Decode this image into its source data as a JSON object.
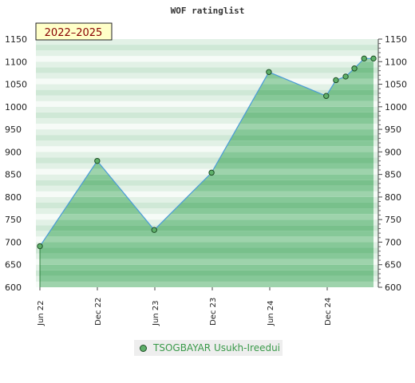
{
  "chart_data": {
    "type": "area",
    "title": "WOF ratinglist",
    "badge": "2022–2025",
    "ylim": [
      600,
      1150
    ],
    "yticks": [
      600,
      650,
      700,
      750,
      800,
      850,
      900,
      950,
      1000,
      1050,
      1100,
      1150
    ],
    "xticks": [
      "Jun 22",
      "Dec 22",
      "Jun 23",
      "Dec 23",
      "Jun 24",
      "Dec 24"
    ],
    "series": [
      {
        "name": "TSOGBAYAR Usukh-Ireedui",
        "x": [
          "2022-06-01",
          "2022-12-01",
          "2023-06-01",
          "2023-12-01",
          "2024-06-01",
          "2024-12-01",
          "2025-01-01",
          "2025-02-01",
          "2025-03-01",
          "2025-04-01",
          "2025-05-01"
        ],
        "values": [
          691,
          880,
          727,
          854,
          1077,
          1024,
          1059,
          1067,
          1085,
          1107,
          1107
        ]
      }
    ],
    "colors": {
      "fill": "#7cc491",
      "line": "#4a9bd8",
      "marker": "#5fb06a"
    },
    "grid": true,
    "legend_position": "bottom"
  }
}
